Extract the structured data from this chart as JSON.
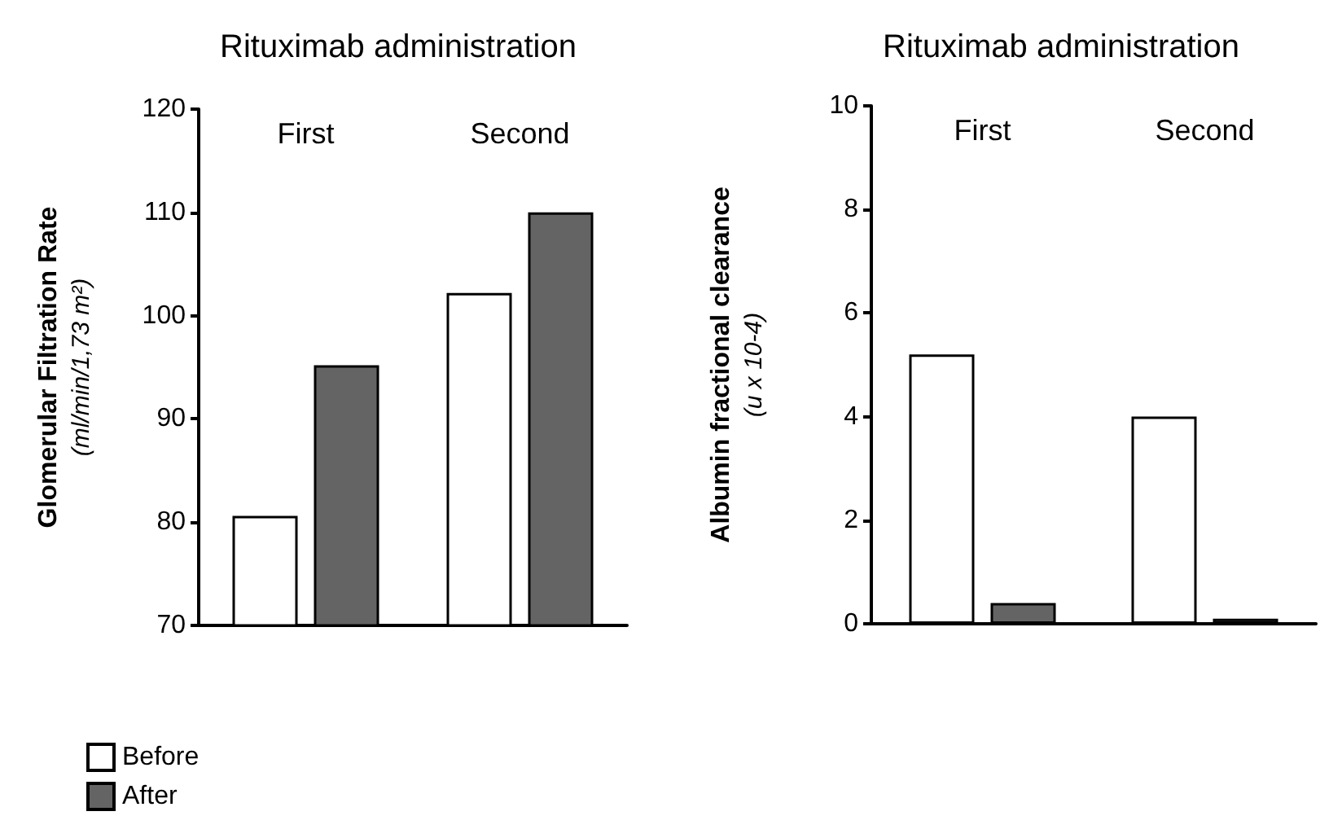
{
  "chart_data": [
    {
      "type": "bar",
      "title": "Rituximab administration",
      "ylabel": "Glomerular Filtration Rate (ml/min/1,73 m²)",
      "categories": [
        "First",
        "Second"
      ],
      "series": [
        {
          "name": "Before",
          "color": "#ffffff",
          "values": [
            80.6,
            102.2
          ]
        },
        {
          "name": "After",
          "color": "#646464",
          "values": [
            95.2,
            110
          ]
        }
      ],
      "ylim": [
        70,
        120
      ],
      "yticks": [
        70,
        80,
        90,
        100,
        110,
        120
      ],
      "grid": false,
      "legend": "bottom left"
    },
    {
      "type": "bar",
      "title": "Rituximab administration",
      "ylabel": "Albumin fractional clearance (u x 10-4)",
      "categories": [
        "First",
        "Second"
      ],
      "series": [
        {
          "color": "#ffffff",
          "values": [
            5.2,
            4.0
          ]
        },
        {
          "color": "#646464",
          "values": [
            0.4,
            0.1
          ]
        }
      ],
      "ylim": [
        0,
        10
      ],
      "yticks": [
        0,
        2,
        4,
        6,
        8,
        10
      ],
      "grid": false,
      "legend": false
    }
  ]
}
